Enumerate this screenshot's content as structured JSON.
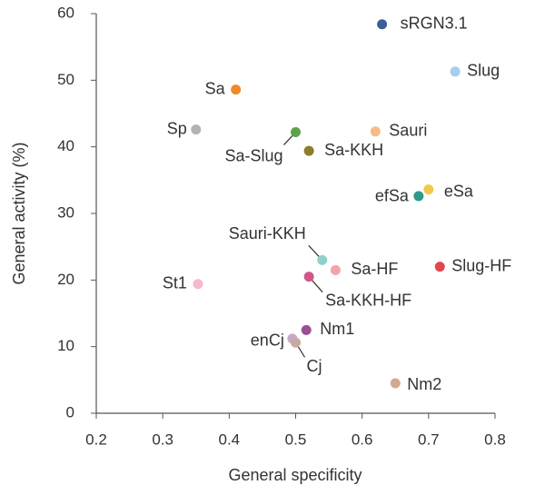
{
  "chart_data": {
    "type": "scatter",
    "x_label": "General specificity",
    "y_label": "General activity (%)",
    "xlim": [
      0.2,
      0.8
    ],
    "xticks": [
      0.2,
      0.3,
      0.4,
      0.5,
      0.6,
      0.7,
      0.8
    ],
    "ylim": [
      0,
      60
    ],
    "yticks": [
      0,
      10,
      20,
      30,
      40,
      50,
      60
    ],
    "series": [
      {
        "name": "sRGN3.1",
        "color": "#3d5f97",
        "x": [
          0.63
        ],
        "values": [
          58.4
        ]
      },
      {
        "name": "Slug",
        "color": "#a9cdea",
        "x": [
          0.74
        ],
        "values": [
          51.3
        ]
      },
      {
        "name": "Sa",
        "color": "#f08a2a",
        "x": [
          0.41
        ],
        "values": [
          48.6
        ]
      },
      {
        "name": "Sp",
        "color": "#b3b3b3",
        "x": [
          0.35
        ],
        "values": [
          42.6
        ]
      },
      {
        "name": "Sauri",
        "color": "#f6bb82",
        "x": [
          0.62
        ],
        "values": [
          42.3
        ]
      },
      {
        "name": "Sa-Slug",
        "color": "#5da34f",
        "x": [
          0.5
        ],
        "values": [
          42.2
        ]
      },
      {
        "name": "Sa-KKH",
        "color": "#8e7d2a",
        "x": [
          0.52
        ],
        "values": [
          39.4
        ]
      },
      {
        "name": "eSa",
        "color": "#f2c94c",
        "x": [
          0.7
        ],
        "values": [
          33.6
        ]
      },
      {
        "name": "efSa",
        "color": "#2d9a8a",
        "x": [
          0.685
        ],
        "values": [
          32.6
        ]
      },
      {
        "name": "Sauri-KKH",
        "color": "#8fd0cc",
        "x": [
          0.54
        ],
        "values": [
          23
        ]
      },
      {
        "name": "Slug-HF",
        "color": "#e0474f",
        "x": [
          0.717
        ],
        "values": [
          22
        ]
      },
      {
        "name": "Sa-HF",
        "color": "#f4a3a8",
        "x": [
          0.56
        ],
        "values": [
          21.5
        ]
      },
      {
        "name": "Sa-KKH-HF",
        "color": "#d1568a",
        "x": [
          0.52
        ],
        "values": [
          20.5
        ]
      },
      {
        "name": "St1",
        "color": "#f5b8d0",
        "x": [
          0.353
        ],
        "values": [
          19.4
        ]
      },
      {
        "name": "Nm1",
        "color": "#9b4f94",
        "x": [
          0.516
        ],
        "values": [
          12.5
        ]
      },
      {
        "name": "enCj",
        "color": "#c9a9c9",
        "x": [
          0.495
        ],
        "values": [
          11.2
        ]
      },
      {
        "name": "Cj",
        "color": "#c8aaa2",
        "x": [
          0.5
        ],
        "values": [
          10.6
        ]
      },
      {
        "name": "Nm2",
        "color": "#d4a890",
        "x": [
          0.65
        ],
        "values": [
          4.5
        ]
      }
    ]
  }
}
